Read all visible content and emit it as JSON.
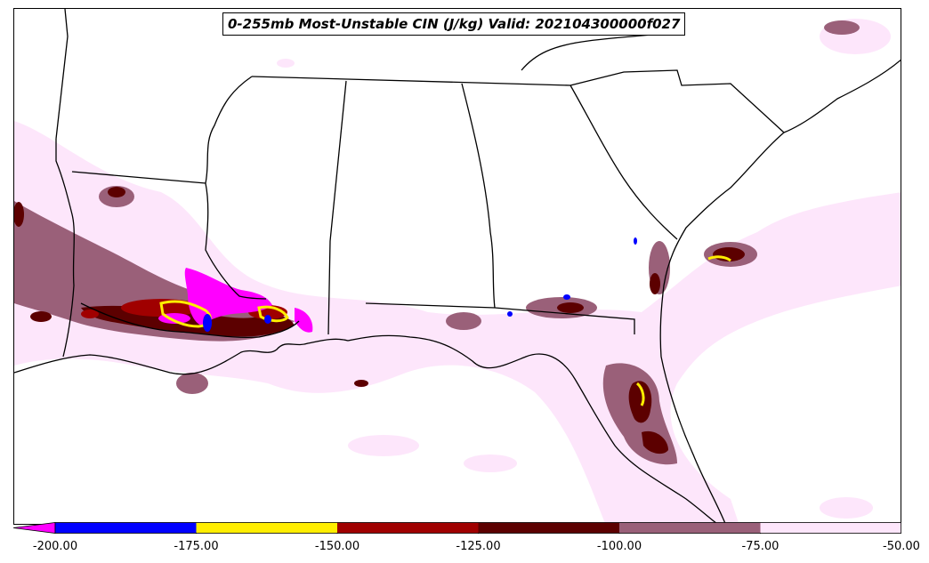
{
  "title": "0-255mb Most-Unstable CIN (J/kg) Valid: 202104300000f027",
  "colorbar": {
    "extend": "min",
    "extend_color": "#ff00ff",
    "bins": [
      {
        "from": -200,
        "to": -175,
        "color": "#0000ff"
      },
      {
        "from": -175,
        "to": -150,
        "color": "#ffee00"
      },
      {
        "from": -150,
        "to": -125,
        "color": "#a00000"
      },
      {
        "from": -125,
        "to": -100,
        "color": "#5c0000"
      },
      {
        "from": -100,
        "to": -75,
        "color": "#9a6079"
      },
      {
        "from": -75,
        "to": -50,
        "color": "#fde6fb"
      }
    ],
    "tick_labels": [
      "-200.00",
      "-175.00",
      "-150.00",
      "-125.00",
      "-100.00",
      "-75.00",
      "-50.00"
    ]
  },
  "map": {
    "region": "Southeastern United States and northern Gulf of Mexico",
    "variable": "0-255mb Most-Unstable CIN",
    "units": "J/kg",
    "boundaries": [
      "coastlines",
      "state-borders"
    ]
  }
}
